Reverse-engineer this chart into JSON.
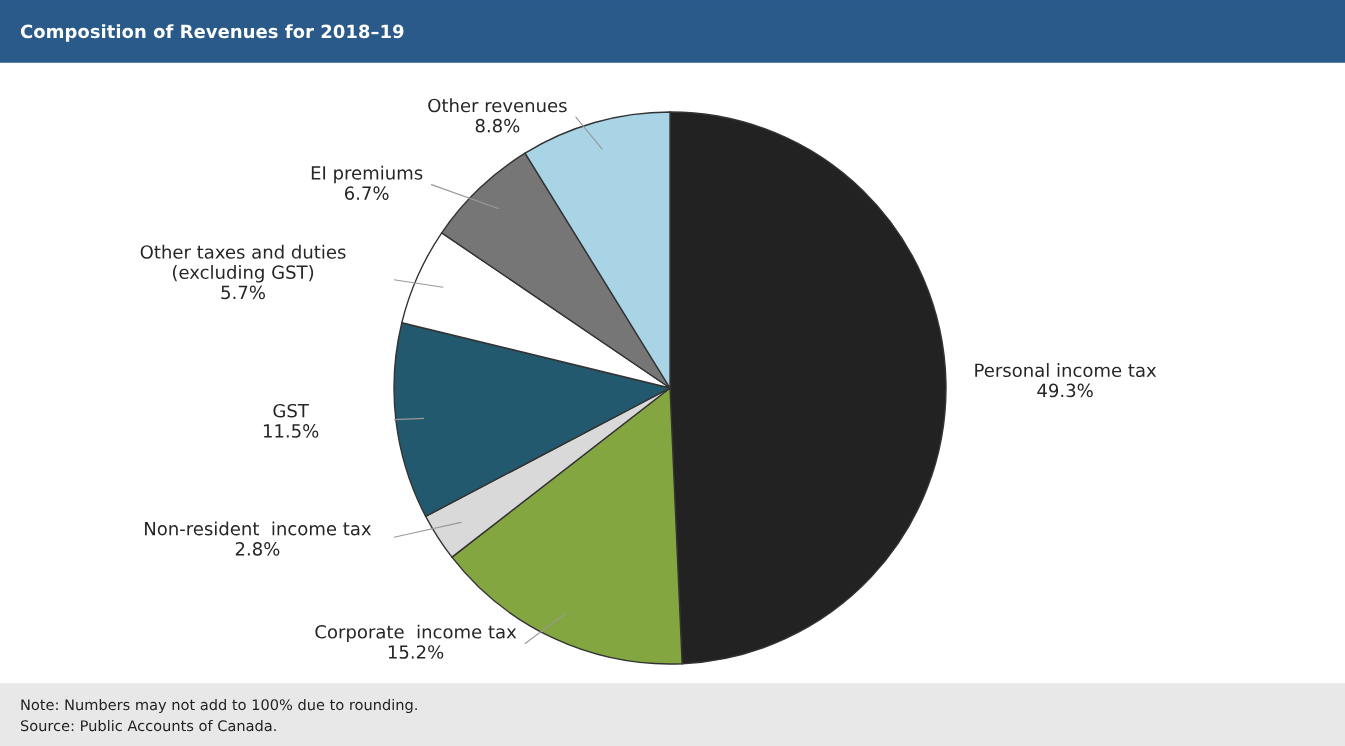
{
  "chart_data": {
    "type": "pie",
    "title": "Composition of Revenues for 2018–19",
    "categories": [
      "Personal income tax",
      "Corporate  income tax",
      "Non-resident  income tax",
      "GST",
      "Other taxes and duties\n(excluding GST)",
      "EI premiums",
      "Other revenues"
    ],
    "values": [
      49.3,
      15.2,
      2.8,
      11.5,
      5.7,
      6.7,
      8.8
    ],
    "colors": [
      "#222222",
      "#84a641",
      "#d9d9d9",
      "#23596e",
      "#ffffff",
      "#767676",
      "#a8d4e6"
    ],
    "value_labels": [
      "49.3%",
      "15.2%",
      "2.8%",
      "11.5%",
      "5.7%",
      "6.7%",
      "8.8%"
    ],
    "annotations": [
      "Note: Numbers may not add to 100% due to rounding.",
      "Source: Public Accounts of Canada."
    ]
  }
}
